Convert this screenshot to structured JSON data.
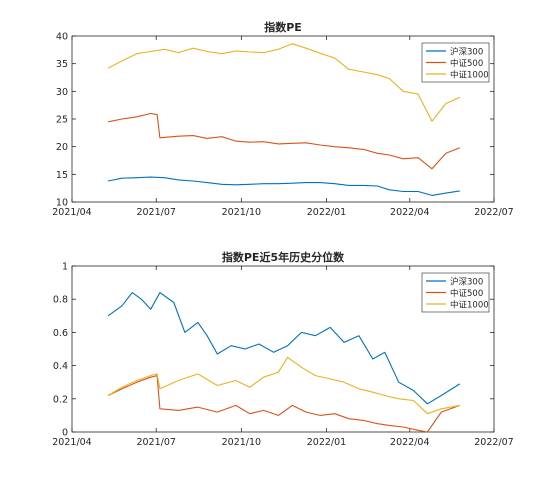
{
  "chart_data": [
    {
      "type": "line",
      "title": "指数PE",
      "xlabel": "",
      "ylabel": "",
      "x_range": [
        "2021-04-01",
        "2022-07-01"
      ],
      "x_ticks": [
        "2021/04",
        "2021/07",
        "2021/10",
        "2022/01",
        "2022/04",
        "2022/07"
      ],
      "ylim": [
        10,
        40
      ],
      "y_ticks": [
        "10",
        "15",
        "20",
        "25",
        "30",
        "35",
        "40"
      ],
      "legend_position": "top-right",
      "grid": false,
      "series": [
        {
          "name": "沪深300",
          "color": "#0072BD",
          "points": [
            [
              "2021-05-10",
              13.8
            ],
            [
              "2021-05-25",
              14.3
            ],
            [
              "2021-06-10",
              14.4
            ],
            [
              "2021-06-25",
              14.5
            ],
            [
              "2021-07-10",
              14.4
            ],
            [
              "2021-07-25",
              14.0
            ],
            [
              "2021-08-10",
              13.8
            ],
            [
              "2021-08-25",
              13.5
            ],
            [
              "2021-09-10",
              13.2
            ],
            [
              "2021-09-25",
              13.1
            ],
            [
              "2021-10-10",
              13.2
            ],
            [
              "2021-10-25",
              13.3
            ],
            [
              "2021-11-10",
              13.3
            ],
            [
              "2021-11-25",
              13.4
            ],
            [
              "2021-12-10",
              13.5
            ],
            [
              "2021-12-25",
              13.5
            ],
            [
              "2022-01-10",
              13.3
            ],
            [
              "2022-01-25",
              13.0
            ],
            [
              "2022-02-10",
              13.0
            ],
            [
              "2022-02-25",
              12.9
            ],
            [
              "2022-03-10",
              12.2
            ],
            [
              "2022-03-25",
              11.9
            ],
            [
              "2022-04-10",
              11.9
            ],
            [
              "2022-04-25",
              11.2
            ],
            [
              "2022-05-10",
              11.6
            ],
            [
              "2022-05-25",
              12.0
            ]
          ]
        },
        {
          "name": "中证500",
          "color": "#D95319",
          "points": [
            [
              "2021-05-10",
              24.5
            ],
            [
              "2021-05-25",
              25.0
            ],
            [
              "2021-06-10",
              25.4
            ],
            [
              "2021-06-25",
              26.0
            ],
            [
              "2021-07-02",
              25.8
            ],
            [
              "2021-07-05",
              21.6
            ],
            [
              "2021-07-25",
              21.9
            ],
            [
              "2021-08-10",
              22.0
            ],
            [
              "2021-08-25",
              21.5
            ],
            [
              "2021-09-10",
              21.8
            ],
            [
              "2021-09-25",
              21.0
            ],
            [
              "2021-10-10",
              20.8
            ],
            [
              "2021-10-25",
              20.9
            ],
            [
              "2021-11-10",
              20.5
            ],
            [
              "2021-11-25",
              20.6
            ],
            [
              "2021-12-10",
              20.7
            ],
            [
              "2021-12-25",
              20.3
            ],
            [
              "2022-01-10",
              20.0
            ],
            [
              "2022-01-25",
              19.8
            ],
            [
              "2022-02-10",
              19.5
            ],
            [
              "2022-02-25",
              18.8
            ],
            [
              "2022-03-10",
              18.5
            ],
            [
              "2022-03-25",
              17.8
            ],
            [
              "2022-04-10",
              18.0
            ],
            [
              "2022-04-25",
              16.0
            ],
            [
              "2022-05-10",
              18.8
            ],
            [
              "2022-05-25",
              19.8
            ]
          ]
        },
        {
          "name": "中证1000",
          "color": "#EDB120",
          "points": [
            [
              "2021-05-10",
              34.2
            ],
            [
              "2021-05-25",
              35.5
            ],
            [
              "2021-06-10",
              36.8
            ],
            [
              "2021-06-25",
              37.2
            ],
            [
              "2021-07-10",
              37.6
            ],
            [
              "2021-07-25",
              37.0
            ],
            [
              "2021-08-10",
              37.8
            ],
            [
              "2021-08-25",
              37.2
            ],
            [
              "2021-09-10",
              36.8
            ],
            [
              "2021-09-25",
              37.3
            ],
            [
              "2021-10-10",
              37.1
            ],
            [
              "2021-10-25",
              37.0
            ],
            [
              "2021-11-10",
              37.6
            ],
            [
              "2021-11-25",
              38.6
            ],
            [
              "2021-12-10",
              37.8
            ],
            [
              "2021-12-25",
              36.9
            ],
            [
              "2022-01-10",
              36.0
            ],
            [
              "2022-01-25",
              34.0
            ],
            [
              "2022-02-10",
              33.5
            ],
            [
              "2022-02-25",
              33.0
            ],
            [
              "2022-03-10",
              32.3
            ],
            [
              "2022-03-25",
              30.0
            ],
            [
              "2022-04-10",
              29.5
            ],
            [
              "2022-04-25",
              24.6
            ],
            [
              "2022-05-10",
              27.8
            ],
            [
              "2022-05-25",
              28.9
            ]
          ]
        }
      ]
    },
    {
      "type": "line",
      "title": "指数PE近5年历史分位数",
      "xlabel": "",
      "ylabel": "",
      "x_range": [
        "2021-04-01",
        "2022-07-01"
      ],
      "x_ticks": [
        "2021/04",
        "2021/07",
        "2021/10",
        "2022/01",
        "2022/04",
        "2022/07"
      ],
      "ylim": [
        0,
        1
      ],
      "y_ticks": [
        "0",
        "0.2",
        "0.4",
        "0.6",
        "0.8",
        "1"
      ],
      "legend_position": "top-right",
      "grid": false,
      "series": [
        {
          "name": "沪深300",
          "color": "#0072BD",
          "points": [
            [
              "2021-05-10",
              0.7
            ],
            [
              "2021-05-25",
              0.76
            ],
            [
              "2021-06-05",
              0.84
            ],
            [
              "2021-06-15",
              0.8
            ],
            [
              "2021-06-25",
              0.74
            ],
            [
              "2021-07-05",
              0.84
            ],
            [
              "2021-07-20",
              0.78
            ],
            [
              "2021-08-01",
              0.6
            ],
            [
              "2021-08-15",
              0.66
            ],
            [
              "2021-08-25",
              0.58
            ],
            [
              "2021-09-05",
              0.47
            ],
            [
              "2021-09-20",
              0.52
            ],
            [
              "2021-10-05",
              0.5
            ],
            [
              "2021-10-20",
              0.53
            ],
            [
              "2021-11-05",
              0.48
            ],
            [
              "2021-11-20",
              0.52
            ],
            [
              "2021-12-05",
              0.6
            ],
            [
              "2021-12-20",
              0.58
            ],
            [
              "2022-01-05",
              0.63
            ],
            [
              "2022-01-20",
              0.54
            ],
            [
              "2022-02-05",
              0.58
            ],
            [
              "2022-02-20",
              0.44
            ],
            [
              "2022-03-05",
              0.48
            ],
            [
              "2022-03-20",
              0.3
            ],
            [
              "2022-04-05",
              0.25
            ],
            [
              "2022-04-20",
              0.17
            ],
            [
              "2022-05-05",
              0.22
            ],
            [
              "2022-05-25",
              0.29
            ]
          ]
        },
        {
          "name": "中证500",
          "color": "#D95319",
          "points": [
            [
              "2021-05-10",
              0.22
            ],
            [
              "2021-05-25",
              0.26
            ],
            [
              "2021-06-10",
              0.3
            ],
            [
              "2021-06-25",
              0.33
            ],
            [
              "2021-07-02",
              0.34
            ],
            [
              "2021-07-05",
              0.14
            ],
            [
              "2021-07-25",
              0.13
            ],
            [
              "2021-08-15",
              0.15
            ],
            [
              "2021-09-05",
              0.12
            ],
            [
              "2021-09-25",
              0.16
            ],
            [
              "2021-10-10",
              0.11
            ],
            [
              "2021-10-25",
              0.13
            ],
            [
              "2021-11-10",
              0.1
            ],
            [
              "2021-11-25",
              0.16
            ],
            [
              "2021-12-10",
              0.12
            ],
            [
              "2021-12-25",
              0.1
            ],
            [
              "2022-01-10",
              0.11
            ],
            [
              "2022-01-25",
              0.08
            ],
            [
              "2022-02-10",
              0.07
            ],
            [
              "2022-02-25",
              0.05
            ],
            [
              "2022-03-10",
              0.04
            ],
            [
              "2022-03-25",
              0.03
            ],
            [
              "2022-04-10",
              0.01
            ],
            [
              "2022-04-20",
              0.0
            ],
            [
              "2022-05-05",
              0.12
            ],
            [
              "2022-05-25",
              0.16
            ]
          ]
        },
        {
          "name": "中证1000",
          "color": "#EDB120",
          "points": [
            [
              "2021-05-10",
              0.22
            ],
            [
              "2021-05-25",
              0.27
            ],
            [
              "2021-06-10",
              0.31
            ],
            [
              "2021-06-25",
              0.34
            ],
            [
              "2021-07-02",
              0.35
            ],
            [
              "2021-07-05",
              0.26
            ],
            [
              "2021-07-25",
              0.31
            ],
            [
              "2021-08-15",
              0.35
            ],
            [
              "2021-09-05",
              0.28
            ],
            [
              "2021-09-25",
              0.31
            ],
            [
              "2021-10-10",
              0.27
            ],
            [
              "2021-10-25",
              0.33
            ],
            [
              "2021-11-10",
              0.36
            ],
            [
              "2021-11-20",
              0.45
            ],
            [
              "2021-12-05",
              0.39
            ],
            [
              "2021-12-20",
              0.34
            ],
            [
              "2022-01-05",
              0.32
            ],
            [
              "2022-01-20",
              0.3
            ],
            [
              "2022-02-05",
              0.26
            ],
            [
              "2022-02-20",
              0.24
            ],
            [
              "2022-03-05",
              0.22
            ],
            [
              "2022-03-20",
              0.2
            ],
            [
              "2022-04-05",
              0.19
            ],
            [
              "2022-04-20",
              0.11
            ],
            [
              "2022-05-05",
              0.14
            ],
            [
              "2022-05-25",
              0.16
            ]
          ]
        }
      ]
    }
  ]
}
